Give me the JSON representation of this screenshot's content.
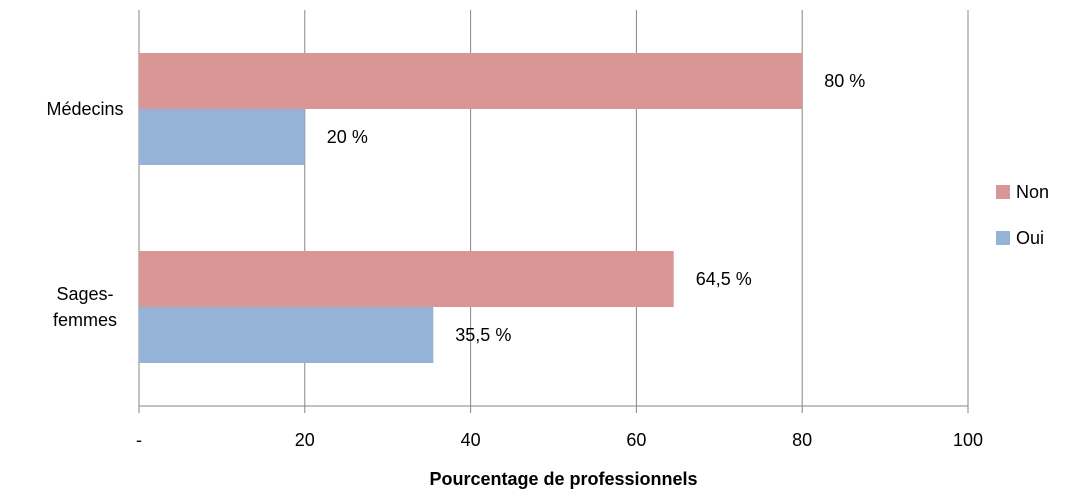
{
  "chart_data": {
    "type": "barh",
    "categories": [
      "Médecins",
      "Sages-femmes"
    ],
    "series": [
      {
        "name": "Non",
        "color": "#d99694",
        "values": [
          80,
          64.5
        ],
        "value_labels": [
          "80 %",
          "64,5 %"
        ]
      },
      {
        "name": "Oui",
        "color": "#95b3d7",
        "values": [
          20,
          35.5
        ],
        "value_labels": [
          "20 %",
          "35,5 %"
        ]
      }
    ],
    "xlabel": "Pourcentage de professionnels",
    "xlim": [
      0,
      100
    ],
    "xticks": [
      {
        "value": 0,
        "label": "-"
      },
      20,
      40,
      60,
      80,
      100
    ],
    "grid": true,
    "legend": "right"
  }
}
